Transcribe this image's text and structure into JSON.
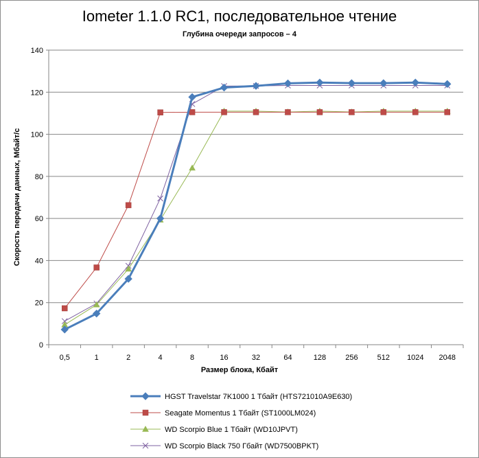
{
  "chart_data": {
    "type": "line",
    "title": "Iometer 1.1.0 RC1, последовательное чтение",
    "subtitle": "Глубина очереди запросов – 4",
    "xlabel": "Размер блока, Кбайт",
    "ylabel": "Скорость передачи данных, Мбайт/с",
    "categories": [
      "0,5",
      "1",
      "2",
      "4",
      "8",
      "16",
      "32",
      "64",
      "128",
      "256",
      "512",
      "1024",
      "2048"
    ],
    "ylim": [
      0,
      140
    ],
    "yticks": [
      0,
      20,
      40,
      60,
      80,
      100,
      120,
      140
    ],
    "grid": "horizontal",
    "legend_position": "bottom",
    "series": [
      {
        "name": "HGST Travelstar 7K1000 1 Тбайт (HTS721010A9E630)",
        "color": "#4a7ebb",
        "marker": "diamond",
        "values": [
          7.2,
          14.8,
          31.3,
          60.0,
          117.7,
          122.2,
          123.0,
          124.2,
          124.6,
          124.3,
          124.3,
          124.6,
          123.9
        ]
      },
      {
        "name": "Seagate Momentus 1 Тбайт (ST1000LM024)",
        "color": "#be4b48",
        "marker": "square",
        "values": [
          17.3,
          36.7,
          66.3,
          110.4,
          110.5,
          110.5,
          110.5,
          110.5,
          110.5,
          110.5,
          110.5,
          110.5,
          110.5
        ]
      },
      {
        "name": "WD Scorpio Blue 1 Тбайт (WD10JPVT)",
        "color": "#98b954",
        "marker": "triangle",
        "values": [
          9.5,
          19.0,
          36.0,
          59.3,
          84.0,
          111.0,
          111.0,
          110.6,
          111.0,
          110.6,
          111.0,
          111.0,
          111.0
        ]
      },
      {
        "name": "WD Scorpio Black 750 Гбайт (WD7500BPKT)",
        "color": "#7d60a0",
        "marker": "x",
        "values": [
          11.2,
          19.6,
          37.5,
          69.5,
          114.4,
          122.9,
          123.0,
          123.2,
          123.2,
          123.2,
          123.2,
          123.2,
          123.2
        ]
      }
    ]
  }
}
